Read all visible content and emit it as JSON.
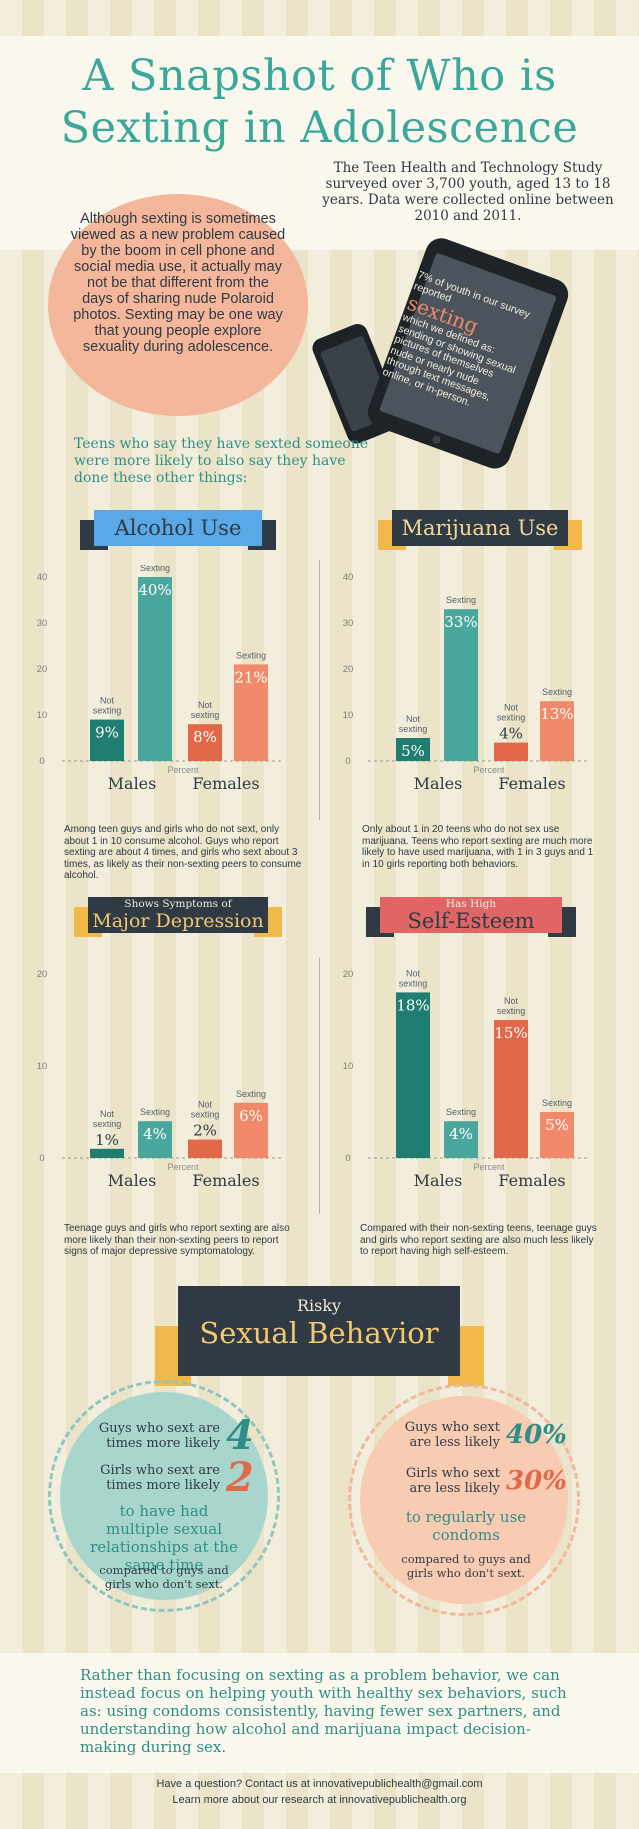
{
  "title": "A Snapshot of Who is Sexting in Adolescence",
  "study_note": "The Teen Health and Technology Study surveyed over 3,700 youth, aged 13 to 18 years. Data were collected online between 2010 and 2011.",
  "intro": "Although sexting is sometimes viewed as a new problem caused by the boom in cell phone and social media use, it actually may not be that different from the days of sharing nude Polaroid photos. Sexting may be one way that young people explore sexuality during adolescence.",
  "tablet": {
    "line1": "7% of youth in our survey reported",
    "word": "sexting",
    "definition": "which we defined as: sending or showing sexual pictures of themselves nude or nearly nude through text messages, online, or in-person."
  },
  "lead": "Teens who say they have sexted someone were more likely to also say they have done these other things:",
  "colors": {
    "teal": "#1f7d72",
    "teal_light": "#4aa79d",
    "orange": "#e2684a",
    "salmon": "#f08a6a",
    "navy": "#2f3a44",
    "ribbon_blue": "#5aa9e6",
    "coral_ribbon": "#e06666"
  },
  "labels": {
    "sexting": "Sexting",
    "not_sexting": "Not sexting",
    "percent": "Percent",
    "males": "Males",
    "females": "Females"
  },
  "chart_data": [
    {
      "type": "bar",
      "id": "alcohol",
      "title": "Alcohol Use",
      "categories": [
        "Males Not sexting",
        "Males Sexting",
        "Females Not sexting",
        "Females Sexting"
      ],
      "values": [
        9,
        40,
        8,
        21
      ],
      "value_labels": [
        "9%",
        "40%",
        "8%",
        "21%"
      ],
      "ylim": [
        0,
        40
      ],
      "yticks": [
        0,
        10,
        20,
        30,
        40
      ],
      "xlabel": "Percent",
      "note": "Among teen guys and girls who do not sext, only about 1 in 10 consume alcohol. Guys who report sexting are about 4 times, and girls who sext about 3 times, as likely as their non-sexting peers to consume alcohol."
    },
    {
      "type": "bar",
      "id": "marijuana",
      "title": "Marijuana Use",
      "categories": [
        "Males Not sexting",
        "Males Sexting",
        "Females Not sexting",
        "Females Sexting"
      ],
      "values": [
        5,
        33,
        4,
        13
      ],
      "value_labels": [
        "5%",
        "33%",
        "4%",
        "13%"
      ],
      "ylim": [
        0,
        40
      ],
      "yticks": [
        0,
        10,
        20,
        30,
        40
      ],
      "xlabel": "Percent",
      "note": "Only about 1 in 20 teens who do not sex use marijuana. Teens who report sexting are much more likely to have used marijuana, with 1 in 3 guys and 1 in 10 girls reporting both behaviors."
    },
    {
      "type": "bar",
      "id": "depression",
      "title_small": "Shows Symptoms of",
      "title": "Major Depression",
      "categories": [
        "Males Not sexting",
        "Males Sexting",
        "Females Not sexting",
        "Females Sexting"
      ],
      "values": [
        1,
        4,
        2,
        6
      ],
      "value_labels": [
        "1%",
        "4%",
        "2%",
        "6%"
      ],
      "ylim": [
        0,
        20
      ],
      "yticks": [
        0,
        10,
        20
      ],
      "xlabel": "Percent",
      "note": "Teenage guys and girls who report sexting are also more likely than their non-sexting peers to report signs of major depressive symptomatology."
    },
    {
      "type": "bar",
      "id": "self_esteem",
      "title_small": "Has High",
      "title": "Self-Esteem",
      "categories": [
        "Males Not sexting",
        "Males Sexting",
        "Females Not sexting",
        "Females Sexting"
      ],
      "values": [
        18,
        4,
        15,
        5
      ],
      "value_labels": [
        "18%",
        "4%",
        "15%",
        "5%"
      ],
      "ylim": [
        0,
        20
      ],
      "yticks": [
        0,
        10,
        20
      ],
      "xlabel": "Percent",
      "note": "Compared with their non-sexting teens, teenage guys and girls who report sexting are also much less likely to report having high self-esteem."
    }
  ],
  "risky": {
    "small": "Risky",
    "title": "Sexual Behavior",
    "left": {
      "row1_text": "Guys who sext are times more likely",
      "row1_num": "4",
      "row2_text": "Girls who sext are times more likely",
      "row2_num": "2",
      "outcome": "to have had multiple sexual relationships at the same time",
      "compare": "compared to guys and girls who don't sext."
    },
    "right": {
      "row1_text": "Guys who sext are less likely",
      "row1_num": "40%",
      "row2_text": "Girls who sext are less likely",
      "row2_num": "30%",
      "outcome": "to regularly use condoms",
      "compare": "compared to guys and girls who don't sext."
    }
  },
  "closing": "Rather than focusing on sexting as a problem behavior, we can instead focus on helping youth with healthy sex behaviors, such as: using condoms consistently, having fewer sex partners, and understanding how alcohol and marijuana impact decision-making during sex.",
  "footer": {
    "line1": "Have a question? Contact us at innovativepublichealth@gmail.com",
    "line2": "Learn more about our research at innovativepublichealth.org"
  }
}
